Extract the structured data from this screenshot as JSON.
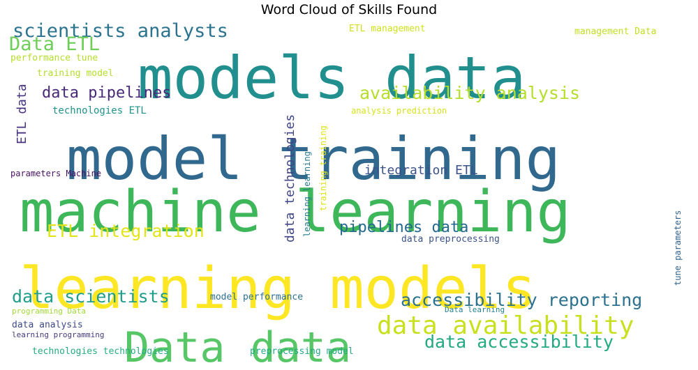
{
  "chart_data": {
    "type": "wordcloud",
    "title": "Word Cloud of Skills Found",
    "colormap": "viridis",
    "background": "#ffffff",
    "words": [
      {
        "text": "models data",
        "weight": 1.0,
        "color": "#218f8d"
      },
      {
        "text": "model training",
        "weight": 1.0,
        "color": "#31688e"
      },
      {
        "text": "machine learning",
        "weight": 0.97,
        "color": "#3eb65a"
      },
      {
        "text": "learning models",
        "weight": 0.97,
        "color": "#fde725"
      },
      {
        "text": "Data data",
        "weight": 0.7,
        "color": "#56c667"
      },
      {
        "text": "scientists analysts",
        "weight": 0.32,
        "color": "#2b738e"
      },
      {
        "text": "Data ETL",
        "weight": 0.32,
        "color": "#6ece58"
      },
      {
        "text": "data pipelines",
        "weight": 0.28,
        "color": "#482979"
      },
      {
        "text": "availability analysis",
        "weight": 0.3,
        "color": "#b5de2b"
      },
      {
        "text": "ETL integration",
        "weight": 0.3,
        "color": "#e3e418"
      },
      {
        "text": "pipelines data",
        "weight": 0.28,
        "color": "#24698e"
      },
      {
        "text": "data scientists",
        "weight": 0.3,
        "color": "#1f9e89"
      },
      {
        "text": "accessibility reporting",
        "weight": 0.3,
        "color": "#2c728e"
      },
      {
        "text": "data availability",
        "weight": 0.45,
        "color": "#c8e020"
      },
      {
        "text": "data accessibility",
        "weight": 0.3,
        "color": "#23a983"
      },
      {
        "text": "integration ETL",
        "weight": 0.2,
        "color": "#3b528b"
      },
      {
        "text": "data technologies",
        "weight": 0.2,
        "color": "#414487"
      },
      {
        "text": "ETL data",
        "weight": 0.2,
        "color": "#46327e"
      },
      {
        "text": "technologies ETL",
        "weight": 0.15,
        "color": "#20928c"
      },
      {
        "text": "ETL management",
        "weight": 0.12,
        "color": "#d0e11c"
      },
      {
        "text": "management Data",
        "weight": 0.12,
        "color": "#c2df23"
      },
      {
        "text": "performance tune",
        "weight": 0.12,
        "color": "#b5de2b"
      },
      {
        "text": "training model",
        "weight": 0.12,
        "color": "#b5de2b"
      },
      {
        "text": "analysis prediction",
        "weight": 0.12,
        "color": "#d8e219"
      },
      {
        "text": "training training",
        "weight": 0.12,
        "color": "#dde318"
      },
      {
        "text": "learning learning",
        "weight": 0.12,
        "color": "#287c8e"
      },
      {
        "text": "parameters Machine",
        "weight": 0.12,
        "color": "#471164"
      },
      {
        "text": "tune parameters",
        "weight": 0.12,
        "color": "#33638d"
      },
      {
        "text": "data preprocessing",
        "weight": 0.12,
        "color": "#3b528b"
      },
      {
        "text": "model performance",
        "weight": 0.12,
        "color": "#2d708e"
      },
      {
        "text": "programming Data",
        "weight": 0.1,
        "color": "#a0da39"
      },
      {
        "text": "Data learning",
        "weight": 0.1,
        "color": "#26818e"
      },
      {
        "text": "data analysis",
        "weight": 0.12,
        "color": "#3e4989"
      },
      {
        "text": "learning programming",
        "weight": 0.1,
        "color": "#453882"
      },
      {
        "text": "technologies technologies",
        "weight": 0.12,
        "color": "#25ab82"
      },
      {
        "text": "preprocessing model",
        "weight": 0.12,
        "color": "#22a884"
      }
    ]
  }
}
